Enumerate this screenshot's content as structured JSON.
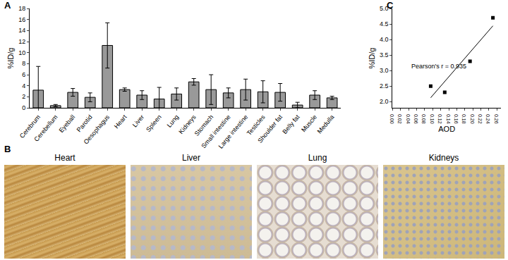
{
  "panels": {
    "labels": [
      "A",
      "B",
      "C"
    ],
    "images": [
      "Heart",
      "Liver",
      "Lung",
      "Kidneys"
    ]
  },
  "chart_data": [
    {
      "type": "bar",
      "categories": [
        "Cerebrum",
        "Cerebellum",
        "Eyeball",
        "Parotid",
        "Oesophagus",
        "Heart",
        "Liver",
        "Spleen",
        "Lung",
        "Kidneys",
        "Stomach",
        "Small intestine",
        "Large intestine",
        "Testicles",
        "Shoulder fat",
        "Belly fat",
        "Muscle",
        "Medulla"
      ],
      "values": [
        3.2,
        0.4,
        2.8,
        1.9,
        11.3,
        3.3,
        2.3,
        1.6,
        2.5,
        4.7,
        3.3,
        2.7,
        3.3,
        2.9,
        2.8,
        0.5,
        2.3,
        1.8
      ],
      "error": [
        4.3,
        0.2,
        0.7,
        0.8,
        4.1,
        0.3,
        0.8,
        2.1,
        1.1,
        0.6,
        2.7,
        0.9,
        1.9,
        2.0,
        1.6,
        0.5,
        0.8,
        0.3
      ],
      "color": "#999999",
      "y_label": "%ID/g",
      "ylim": [
        0,
        18
      ],
      "yticks": [
        0,
        2,
        4,
        6,
        8,
        10,
        12,
        14,
        16,
        18
      ],
      "grid": false
    },
    {
      "type": "scatter",
      "x_label": "AOD",
      "y_label": "%ID/g",
      "annotations": [
        "Pearson's r = 0.935"
      ],
      "xlim": [
        0,
        0.27
      ],
      "xticks": [
        {
          "value": 0,
          "label": "0.00"
        },
        {
          "value": 0.02,
          "label": "0.02"
        },
        {
          "value": 0.04,
          "label": "0.04"
        },
        {
          "value": 0.06,
          "label": "0.06"
        },
        {
          "value": 0.08,
          "label": "0.08"
        },
        {
          "value": 0.1,
          "label": "0.10"
        },
        {
          "value": 0.12,
          "label": "0.12"
        },
        {
          "value": 0.14,
          "label": "0.14"
        },
        {
          "value": 0.16,
          "label": "0.16"
        },
        {
          "value": 0.18,
          "label": "0.18"
        },
        {
          "value": 0.2,
          "label": "0.20"
        },
        {
          "value": 0.22,
          "label": "0.22"
        },
        {
          "value": 0.24,
          "label": "0.24"
        },
        {
          "value": 0.26,
          "label": "0.26"
        }
      ],
      "ylim": [
        1.8,
        5.0
      ],
      "yticks": [
        {
          "value": 2,
          "label": "2.0"
        },
        {
          "value": 2.5,
          "label": "2.5"
        },
        {
          "value": 3,
          "label": "3.0"
        },
        {
          "value": 3.5,
          "label": "3.5"
        },
        {
          "value": 4,
          "label": "4.0"
        },
        {
          "value": 4.5,
          "label": "4.5"
        },
        {
          "value": 5,
          "label": "5.0"
        }
      ],
      "grid": false,
      "series": [
        {
          "type": "scatter",
          "marker": "square",
          "color": "#000000",
          "x": [
            0.095,
            0.13,
            0.193,
            0.25
          ],
          "values": [
            2.5,
            2.3,
            3.3,
            4.7
          ]
        },
        {
          "type": "line",
          "color": "#000000",
          "x": [
            0.095,
            0.25
          ],
          "values": [
            2.125,
            4.44
          ]
        }
      ]
    }
  ]
}
